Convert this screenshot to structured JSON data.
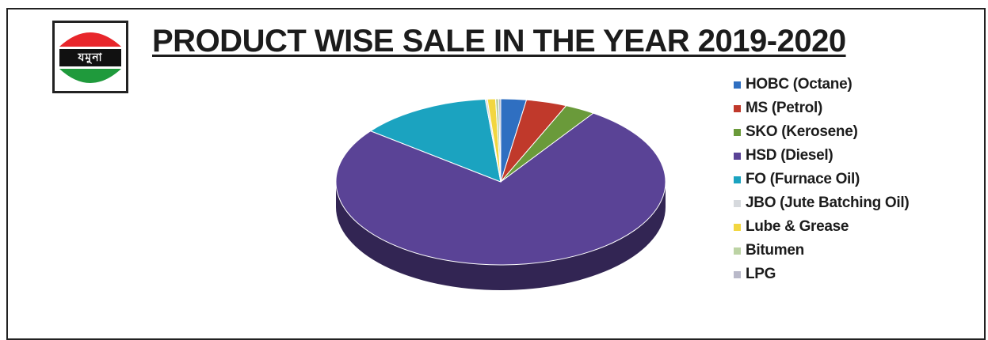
{
  "title": "PRODUCT WISE SALE IN THE YEAR 2019-2020",
  "logo": {
    "text": "যমুনা",
    "colors": {
      "top": "#e8262b",
      "bottom": "#1f9a3c",
      "band": "#111111"
    }
  },
  "chart_data": {
    "type": "pie",
    "title": "PRODUCT WISE SALE IN THE YEAR 2019-2020",
    "legend_position": "right",
    "three_d": true,
    "slices": [
      {
        "label": "HOBC (Octane)",
        "value": 2.5,
        "color": "#2f6fc1"
      },
      {
        "label": "MS (Petrol)",
        "value": 4.0,
        "color": "#c0392b"
      },
      {
        "label": "SKO (Kerosene)",
        "value": 3.0,
        "color": "#6a9a3a"
      },
      {
        "label": "HSD (Diesel)",
        "value": 76.0,
        "color": "#5a4396"
      },
      {
        "label": "FO (Furnace Oil)",
        "value": 13.0,
        "color": "#1ba3c0"
      },
      {
        "label": "JBO (Jute Batching Oil)",
        "value": 0.2,
        "color": "#d6d9dd"
      },
      {
        "label": "Lube & Grease",
        "value": 0.8,
        "color": "#f2d640"
      },
      {
        "label": "Bitumen",
        "value": 0.3,
        "color": "#bcd3a4"
      },
      {
        "label": "LPG",
        "value": 0.2,
        "color": "#b9b9c9"
      }
    ]
  }
}
